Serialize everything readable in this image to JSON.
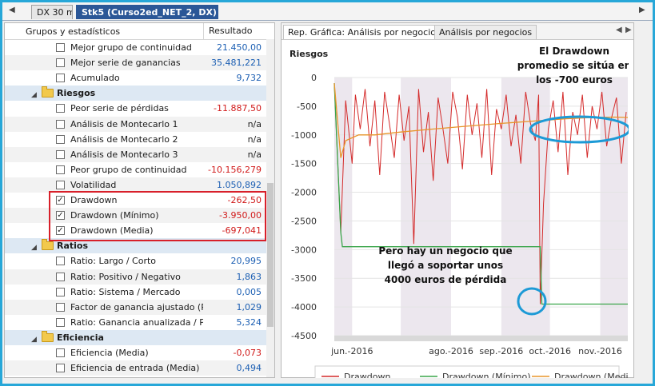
{
  "tabs": [
    {
      "label": "DX 30 m"
    },
    {
      "label": "Stk5 (Curso2ed_NET_2, DX)"
    }
  ],
  "left_panel": {
    "col_name": "Grupos y estadísticos",
    "col_value": "Resultado",
    "rows": [
      {
        "kind": "item",
        "label": "Mejor grupo de continuidad",
        "value": "21.450,00",
        "color": "blue",
        "checked": false
      },
      {
        "kind": "item",
        "label": "Mejor serie de ganancias",
        "value": "35.481,221",
        "color": "blue",
        "checked": false
      },
      {
        "kind": "item",
        "label": "Acumulado",
        "value": "9,732",
        "color": "blue",
        "checked": false
      },
      {
        "kind": "group",
        "label": "Riesgos"
      },
      {
        "kind": "item",
        "label": "Peor serie de pérdidas",
        "value": "-11.887,50",
        "color": "red",
        "checked": false
      },
      {
        "kind": "item",
        "label": "Análisis de Montecarlo 1",
        "value": "n/a",
        "color": "black",
        "checked": false
      },
      {
        "kind": "item",
        "label": "Análisis de Montecarlo 2",
        "value": "n/a",
        "color": "black",
        "checked": false
      },
      {
        "kind": "item",
        "label": "Análisis de Montecarlo 3",
        "value": "n/a",
        "color": "black",
        "checked": false
      },
      {
        "kind": "item",
        "label": "Peor grupo de continuidad",
        "value": "-10.156,279",
        "color": "red",
        "checked": false
      },
      {
        "kind": "item",
        "label": "Volatilidad",
        "value": "1.050,892",
        "color": "blue",
        "checked": false
      },
      {
        "kind": "item",
        "label": "Drawdown",
        "value": "-262,50",
        "color": "red",
        "checked": true
      },
      {
        "kind": "item",
        "label": "Drawdown (Mínimo)",
        "value": "-3.950,00",
        "color": "red",
        "checked": true
      },
      {
        "kind": "item",
        "label": "Drawdown (Media)",
        "value": "-697,041",
        "color": "red",
        "checked": true
      },
      {
        "kind": "group",
        "label": "Ratios"
      },
      {
        "kind": "item",
        "label": "Ratio: Largo / Corto",
        "value": "20,995",
        "color": "blue",
        "checked": false
      },
      {
        "kind": "item",
        "label": "Ratio: Positivo / Negativo",
        "value": "1,863",
        "color": "blue",
        "checked": false
      },
      {
        "kind": "item",
        "label": "Ratio: Sistema / Mercado",
        "value": "0,005",
        "color": "blue",
        "checked": false
      },
      {
        "kind": "item",
        "label": "Factor de ganancia ajustado (Pl",
        "value": "1,029",
        "color": "blue",
        "checked": false
      },
      {
        "kind": "item",
        "label": "Ratio: Ganancia anualizada / Pe",
        "value": "5,324",
        "color": "blue",
        "checked": false
      },
      {
        "kind": "group",
        "label": "Eficiencia"
      },
      {
        "kind": "item",
        "label": "Eficiencia (Media)",
        "value": "-0,073",
        "color": "red",
        "checked": false
      },
      {
        "kind": "item",
        "label": "Eficiencia de entrada (Media)",
        "value": "0,494",
        "color": "blue",
        "checked": false
      }
    ]
  },
  "right_panel": {
    "tabs": [
      {
        "label": "Rep. Gráfica: Análisis por negocios"
      },
      {
        "label": "Análisis por negocios"
      }
    ]
  },
  "colors": {
    "drawdown": "#d42a2a",
    "drawdown_min": "#3aa54a",
    "drawdown_media": "#e8952a",
    "highlight_red": "#d8202a",
    "annotation_blue": "#1d9ad6"
  },
  "annotations": {
    "top": [
      "El Drawdown",
      "promedio se sitúa en",
      "los -700 euros"
    ],
    "bottom": [
      "Pero hay un negocio que",
      "llegó a soportar unos",
      "4000 euros de pérdida"
    ]
  },
  "chart_data": {
    "type": "line",
    "title": "",
    "ylabel": "Riesgos",
    "xlabel": "",
    "ylim": [
      -4500,
      0
    ],
    "yticks": [
      0,
      -500,
      -1000,
      -1500,
      -2000,
      -2500,
      -3000,
      -3500,
      -4000,
      -4500
    ],
    "xticks": [
      "jun.-2016",
      "ago.-2016",
      "sep.-2016",
      "oct.-2016",
      "nov.-2016"
    ],
    "x_range": [
      "2016-05-21",
      "2016-11-18"
    ],
    "xtick_dates": [
      "2016-06-01",
      "2016-08-01",
      "2016-09-01",
      "2016-10-01",
      "2016-11-01"
    ],
    "shaded_bands": [
      [
        "2016-05-21",
        "2016-06-01"
      ],
      [
        "2016-07-01",
        "2016-08-01"
      ],
      [
        "2016-09-01",
        "2016-10-01"
      ],
      [
        "2016-11-01",
        "2016-11-18"
      ]
    ],
    "legend_position": "bottom",
    "series": [
      {
        "name": "Drawdown",
        "x": [
          "2016-05-21",
          "2016-05-25",
          "2016-05-28",
          "2016-06-01",
          "2016-06-03",
          "2016-06-06",
          "2016-06-09",
          "2016-06-12",
          "2016-06-15",
          "2016-06-18",
          "2016-06-21",
          "2016-06-24",
          "2016-06-27",
          "2016-06-30",
          "2016-07-03",
          "2016-07-06",
          "2016-07-09",
          "2016-07-12",
          "2016-07-15",
          "2016-07-18",
          "2016-07-21",
          "2016-07-24",
          "2016-07-27",
          "2016-07-30",
          "2016-08-02",
          "2016-08-05",
          "2016-08-08",
          "2016-08-11",
          "2016-08-14",
          "2016-08-17",
          "2016-08-20",
          "2016-08-23",
          "2016-08-26",
          "2016-08-29",
          "2016-09-01",
          "2016-09-04",
          "2016-09-07",
          "2016-09-10",
          "2016-09-13",
          "2016-09-16",
          "2016-09-19",
          "2016-09-22",
          "2016-09-24",
          "2016-09-25",
          "2016-09-27",
          "2016-09-30",
          "2016-10-03",
          "2016-10-06",
          "2016-10-09",
          "2016-10-12",
          "2016-10-15",
          "2016-10-18",
          "2016-10-21",
          "2016-10-24",
          "2016-10-27",
          "2016-10-30",
          "2016-11-02",
          "2016-11-05",
          "2016-11-08",
          "2016-11-11",
          "2016-11-14",
          "2016-11-17"
        ],
        "values": [
          -100,
          -2700,
          -400,
          -1500,
          -300,
          -900,
          -200,
          -1200,
          -400,
          -1700,
          -250,
          -800,
          -1400,
          -300,
          -1100,
          -500,
          -2900,
          -200,
          -1300,
          -600,
          -1800,
          -350,
          -900,
          -1500,
          -250,
          -700,
          -1600,
          -300,
          -1000,
          -450,
          -1400,
          -200,
          -1700,
          -550,
          -900,
          -300,
          -1200,
          -650,
          -1500,
          -250,
          -800,
          -1100,
          -300,
          -3950,
          -2200,
          -900,
          -400,
          -1300,
          -250,
          -1700,
          -600,
          -1000,
          -300,
          -1400,
          -500,
          -900,
          -250,
          -1200,
          -700,
          -350,
          -1500,
          -600
        ]
      },
      {
        "name": "Drawdown (Mínimo)",
        "x": [
          "2016-05-21",
          "2016-05-25",
          "2016-05-26",
          "2016-09-25",
          "2016-09-26",
          "2016-11-18"
        ],
        "values": [
          -100,
          -2700,
          -2950,
          -2950,
          -3950,
          -3950
        ]
      },
      {
        "name": "Drawdown (Media)",
        "x": [
          "2016-05-21",
          "2016-05-25",
          "2016-05-28",
          "2016-06-05",
          "2016-06-15",
          "2016-07-01",
          "2016-07-20",
          "2016-08-10",
          "2016-09-01",
          "2016-09-20",
          "2016-09-26",
          "2016-10-10",
          "2016-10-25",
          "2016-11-10",
          "2016-11-18"
        ],
        "values": [
          -100,
          -1400,
          -1100,
          -1000,
          -1000,
          -950,
          -900,
          -850,
          -800,
          -760,
          -750,
          -720,
          -700,
          -690,
          -697
        ]
      }
    ]
  }
}
